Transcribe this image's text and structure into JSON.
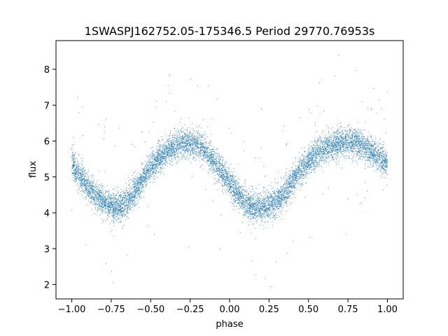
{
  "chart_data": {
    "type": "scatter",
    "title": "1SWASPJ162752.05-175346.5 Period 29770.76953s",
    "xlabel": "phase",
    "ylabel": "flux",
    "xlim": [
      -1.1,
      1.1
    ],
    "ylim": [
      1.6,
      8.8
    ],
    "x_ticks": [
      -1.0,
      -0.75,
      -0.5,
      -0.25,
      0.0,
      0.25,
      0.5,
      0.75,
      1.0
    ],
    "x_tick_labels": [
      "−1.00",
      "−0.75",
      "−0.50",
      "−0.25",
      "0.00",
      "0.25",
      "0.50",
      "0.75",
      "1.00"
    ],
    "y_ticks": [
      2,
      3,
      4,
      5,
      6,
      7,
      8
    ],
    "y_tick_labels": [
      "2",
      "3",
      "4",
      "5",
      "6",
      "7",
      "8"
    ],
    "grid": false,
    "legend": "none",
    "marker_color": "#1f77b4",
    "series": [
      {
        "x": [
          -1.0,
          -0.95,
          -0.9,
          -0.85,
          -0.8,
          -0.75,
          -0.7,
          -0.65,
          -0.6,
          -0.55,
          -0.5,
          -0.45,
          -0.4,
          -0.35,
          -0.3,
          -0.25,
          -0.2,
          -0.15,
          -0.1,
          -0.05,
          0.0,
          0.05,
          0.1,
          0.15,
          0.2,
          0.25,
          0.3,
          0.35,
          0.4,
          0.45,
          0.5,
          0.55,
          0.6,
          0.65,
          0.7,
          0.75,
          0.8,
          0.85,
          0.9,
          0.95,
          1.0
        ],
        "y": [
          5.35,
          5.05,
          4.75,
          4.5,
          4.3,
          4.2,
          4.15,
          4.3,
          4.6,
          4.95,
          5.25,
          5.5,
          5.7,
          5.85,
          5.95,
          5.95,
          5.9,
          5.7,
          5.45,
          5.15,
          4.85,
          4.55,
          4.3,
          4.15,
          4.15,
          4.2,
          4.3,
          4.55,
          4.9,
          5.2,
          5.45,
          5.65,
          5.8,
          5.9,
          5.95,
          6.0,
          5.95,
          5.85,
          5.7,
          5.55,
          5.4
        ]
      }
    ]
  }
}
